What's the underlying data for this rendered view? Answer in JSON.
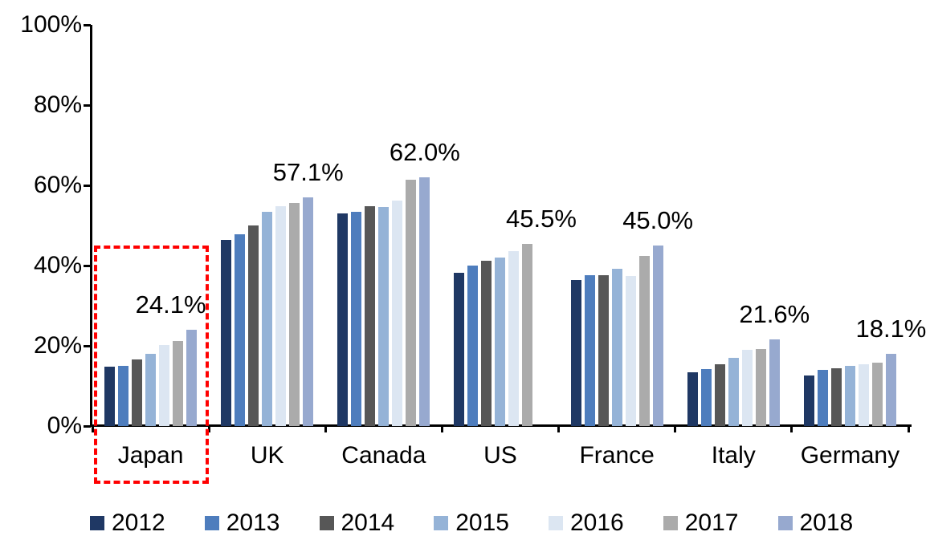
{
  "chart_data": {
    "type": "bar",
    "title": "",
    "categories": [
      "Japan",
      "UK",
      "Canada",
      "US",
      "France",
      "Italy",
      "Germany"
    ],
    "series": [
      {
        "name": "2012",
        "color": "#1F3864",
        "values": [
          14.8,
          46.4,
          53.0,
          38.2,
          36.5,
          13.4,
          12.6
        ]
      },
      {
        "name": "2013",
        "color": "#4E7DBD",
        "values": [
          15.0,
          47.8,
          53.4,
          40.0,
          37.7,
          14.3,
          14.0
        ]
      },
      {
        "name": "2014",
        "color": "#575757",
        "values": [
          16.6,
          50.0,
          54.8,
          41.2,
          37.7,
          15.4,
          14.4
        ]
      },
      {
        "name": "2015",
        "color": "#95B3D7",
        "values": [
          18.1,
          53.4,
          54.6,
          42.1,
          39.3,
          17.0,
          15.0
        ]
      },
      {
        "name": "2016",
        "color": "#DCE6F2",
        "values": [
          20.2,
          54.8,
          56.2,
          43.6,
          37.4,
          19.1,
          15.4
        ]
      },
      {
        "name": "2017",
        "color": "#ABABAB",
        "values": [
          21.2,
          55.6,
          61.5,
          45.5,
          42.4,
          19.3,
          15.9
        ]
      },
      {
        "name": "2018",
        "color": "#97A9CF",
        "values": [
          24.1,
          57.1,
          62.0,
          null,
          45.0,
          21.6,
          18.1
        ]
      }
    ],
    "data_labels": [
      "24.1%",
      "57.1%",
      "62.0%",
      "45.5%",
      "45.0%",
      "21.6%",
      "18.1%"
    ],
    "y_ticks": [
      "0%",
      "20%",
      "40%",
      "60%",
      "80%",
      "100%"
    ],
    "ylim": [
      0,
      100
    ],
    "grid": "off",
    "legend_position": "bottom",
    "highlight": {
      "category": "Japan",
      "color": "#FF0000",
      "style": "dashed-box"
    }
  }
}
